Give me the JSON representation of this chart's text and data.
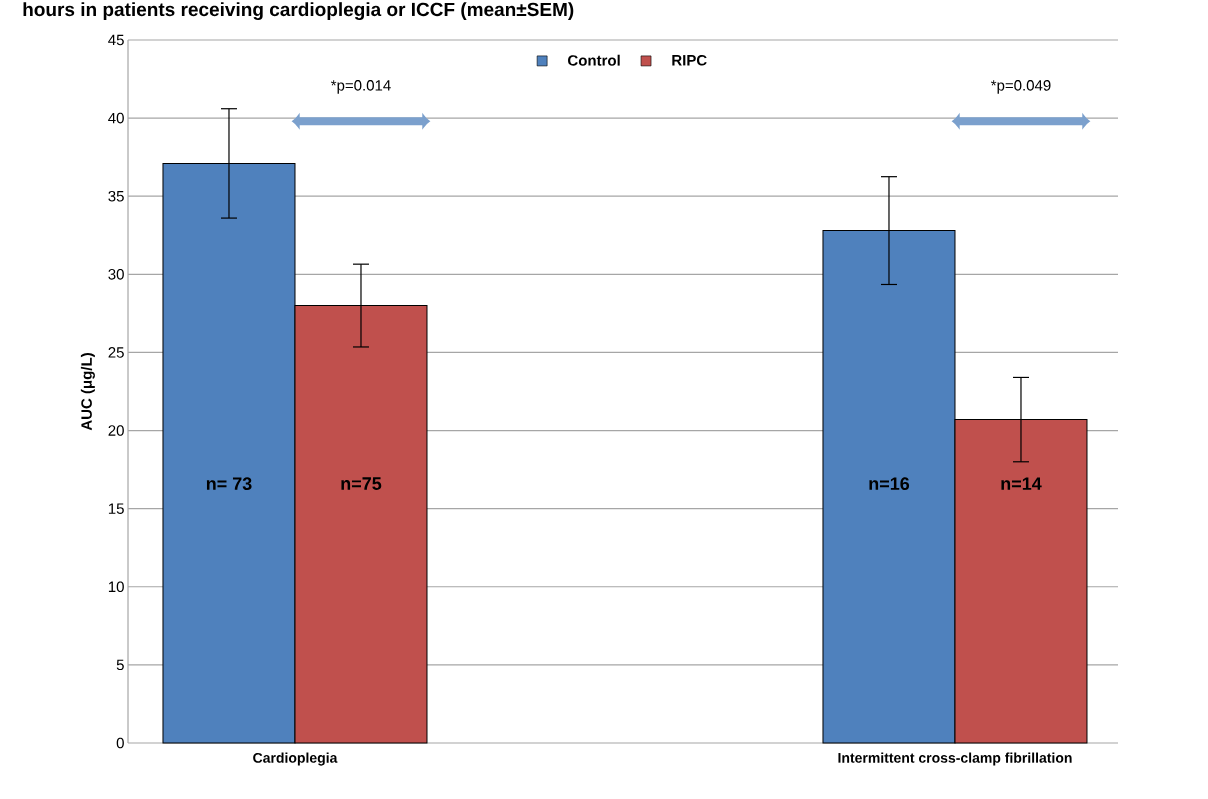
{
  "chart_data": {
    "type": "bar",
    "title": "hours in patients receiving cardioplegia or ICCF (mean±SEM)",
    "ylabel": "AUC  (μg/L)",
    "categories": [
      "Cardioplegia",
      "Intermittent cross-clamp fibrillation"
    ],
    "series": [
      {
        "name": "Control",
        "color": "#4f81bd",
        "values": [
          37.1,
          32.8
        ],
        "errors": [
          3.5,
          3.45
        ]
      },
      {
        "name": "RIPC",
        "color": "#c0504d",
        "values": [
          28.0,
          20.7
        ],
        "errors": [
          2.65,
          2.7
        ]
      }
    ],
    "ylim": [
      0,
      45
    ],
    "yticks": [
      0,
      5,
      10,
      15,
      20,
      25,
      30,
      35,
      40,
      45
    ],
    "grid": "y",
    "legend": "top",
    "annotations": [
      "*p=0.014",
      "*p=0.049",
      {
        "text": "n= 73",
        "x": "Cardioplegia",
        "y": 16.6
      },
      {
        "text": "n=75",
        "x": "Cardioplegia",
        "y": 16.6
      },
      {
        "text": "n=16",
        "x": "Intermittent cross-clamp fibrillation",
        "y": 16.6
      },
      {
        "text": "n=14",
        "x": "Intermittent cross-clamp fibrillation",
        "y": 16.6
      }
    ]
  }
}
